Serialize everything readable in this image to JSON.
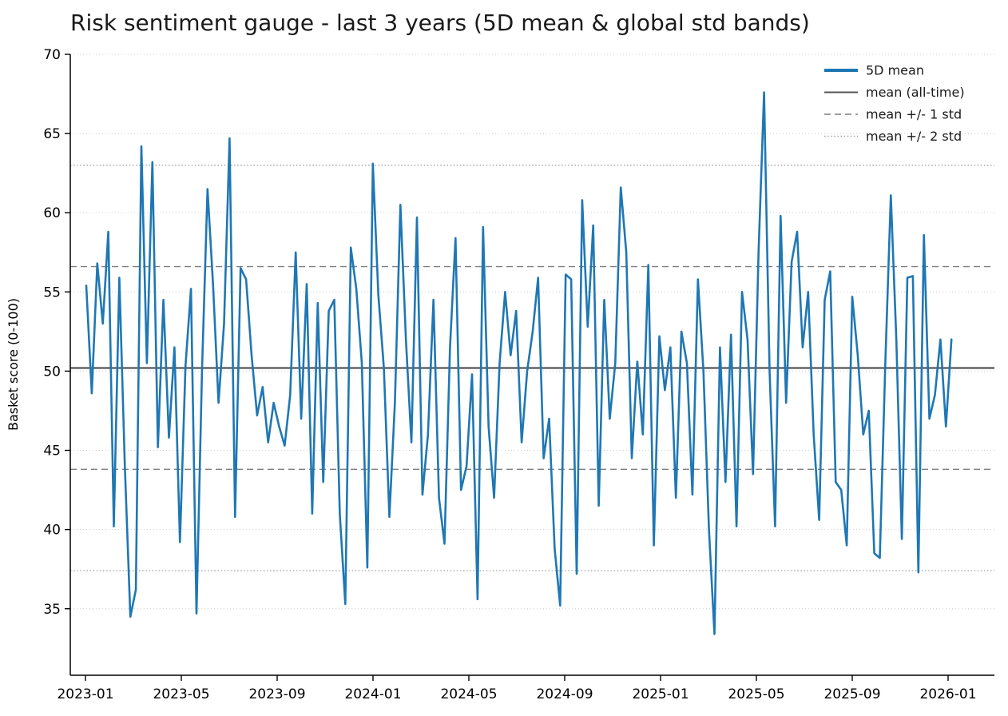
{
  "chart_data": {
    "type": "line",
    "title": "Risk sentiment gauge - last 3 years (5D mean & global std bands)",
    "xlabel": "",
    "ylabel": "Basket score (0-100)",
    "ylim": [
      30.8,
      70.0
    ],
    "y_ticks": [
      35,
      40,
      45,
      50,
      55,
      60,
      65,
      70
    ],
    "x_ticks": [
      "2023-01",
      "2023-05",
      "2023-09",
      "2024-01",
      "2024-05",
      "2024-09",
      "2025-01",
      "2025-05",
      "2025-09",
      "2026-01"
    ],
    "grid": "horizontal-dotted",
    "legend_position": "upper right",
    "series": [
      {
        "name": "5D mean",
        "color": "#1f77b4",
        "line_width": 2.6,
        "x_start": "2023-01-02",
        "x_step_days": 7,
        "values": [
          55.4,
          48.6,
          56.8,
          53.0,
          58.8,
          40.2,
          55.9,
          44.0,
          34.5,
          36.2,
          64.2,
          50.5,
          63.2,
          45.2,
          54.5,
          45.8,
          51.5,
          39.2,
          50.3,
          55.2,
          34.7,
          50.0,
          61.5,
          55.5,
          48.0,
          53.0,
          64.7,
          40.8,
          56.5,
          55.8,
          51.0,
          47.2,
          49.0,
          45.5,
          48.0,
          46.5,
          45.3,
          48.5,
          57.5,
          47.0,
          55.5,
          41.0,
          54.3,
          43.0,
          53.8,
          54.5,
          41.0,
          35.3,
          57.8,
          55.2,
          50.5,
          37.6,
          63.1,
          54.8,
          50.2,
          40.8,
          48.0,
          60.5,
          52.0,
          45.5,
          59.7,
          42.2,
          46.0,
          54.5,
          42.0,
          39.1,
          51.5,
          58.4,
          42.5,
          44.0,
          49.8,
          35.6,
          59.1,
          46.5,
          42.0,
          50.5,
          55.0,
          51.0,
          53.8,
          45.5,
          50.0,
          52.5,
          55.9,
          44.5,
          47.0,
          38.8,
          35.2,
          56.1,
          55.8,
          37.2,
          60.8,
          52.8,
          59.2,
          41.5,
          54.5,
          47.0,
          50.5,
          61.6,
          57.5,
          44.5,
          50.6,
          46.0,
          56.7,
          39.0,
          52.2,
          48.8,
          51.5,
          42.0,
          52.5,
          50.5,
          42.2,
          55.8,
          50.0,
          40.0,
          33.4,
          51.5,
          43.0,
          52.3,
          40.2,
          55.0,
          52.0,
          43.5,
          57.5,
          67.6,
          50.0,
          40.2,
          59.8,
          48.0,
          56.9,
          58.8,
          51.5,
          55.0,
          46.0,
          40.6,
          54.5,
          56.3,
          43.0,
          42.5,
          39.0,
          54.7,
          51.0,
          46.0,
          47.5,
          38.5,
          38.2,
          50.5,
          61.1,
          52.0,
          39.4,
          55.9,
          56.0,
          37.3,
          58.6,
          47.0,
          48.5,
          52.0,
          46.5,
          52.0
        ]
      }
    ],
    "reference_lines": [
      {
        "name": "mean (all-time)",
        "values": [
          50.2
        ],
        "style": "solid",
        "color": "#555555",
        "line_width": 2.2
      },
      {
        "name": "mean +/- 1 std",
        "values": [
          56.6,
          43.8
        ],
        "style": "dashed",
        "color": "#7f7f7f",
        "line_width": 1.4
      },
      {
        "name": "mean +/- 2 std",
        "values": [
          63.0,
          37.4
        ],
        "style": "dotted",
        "color": "#a6a6a6",
        "line_width": 1.4
      }
    ],
    "legend": [
      {
        "label": "5D mean",
        "style": "solid",
        "color": "#1f77b4",
        "line_width": 4.0
      },
      {
        "label": "mean (all-time)",
        "style": "solid",
        "color": "#555555",
        "line_width": 2.0
      },
      {
        "label": "mean +/- 1 std",
        "style": "dashed",
        "color": "#7f7f7f",
        "line_width": 1.6
      },
      {
        "label": "mean +/- 2 std",
        "style": "dotted",
        "color": "#a6a6a6",
        "line_width": 1.6
      }
    ]
  }
}
